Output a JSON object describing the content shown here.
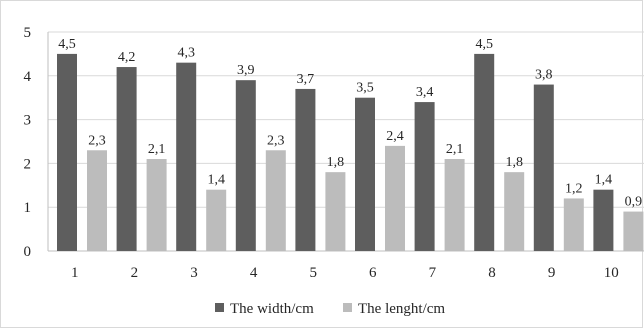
{
  "chart_data": {
    "type": "bar",
    "categories": [
      "1",
      "2",
      "3",
      "4",
      "5",
      "6",
      "7",
      "8",
      "9",
      "10"
    ],
    "series": [
      {
        "name": "The width/cm",
        "values": [
          4.5,
          4.2,
          4.3,
          3.9,
          3.7,
          3.5,
          3.4,
          4.5,
          3.8,
          1.4
        ],
        "color": "#5e5e5e",
        "labels": [
          "4,5",
          "4,2",
          "4,3",
          "3,9",
          "3,7",
          "3,5",
          "3,4",
          "4,5",
          "3,8",
          "1,4"
        ]
      },
      {
        "name": "The lenght/cm",
        "values": [
          2.3,
          2.1,
          1.4,
          2.3,
          1.8,
          2.4,
          2.1,
          1.8,
          1.2,
          0.9
        ],
        "color": "#bcbcbc",
        "labels": [
          "2,3",
          "2,1",
          "1,4",
          "2,3",
          "1,8",
          "2,4",
          "2,1",
          "1,8",
          "1,2",
          "0,9"
        ]
      }
    ],
    "y_ticks": [
      "0",
      "1",
      "2",
      "3",
      "4",
      "5"
    ],
    "ylim": [
      0,
      5
    ],
    "grid": true,
    "gridline_color": "#d9d9d9",
    "legend_position": "bottom"
  }
}
